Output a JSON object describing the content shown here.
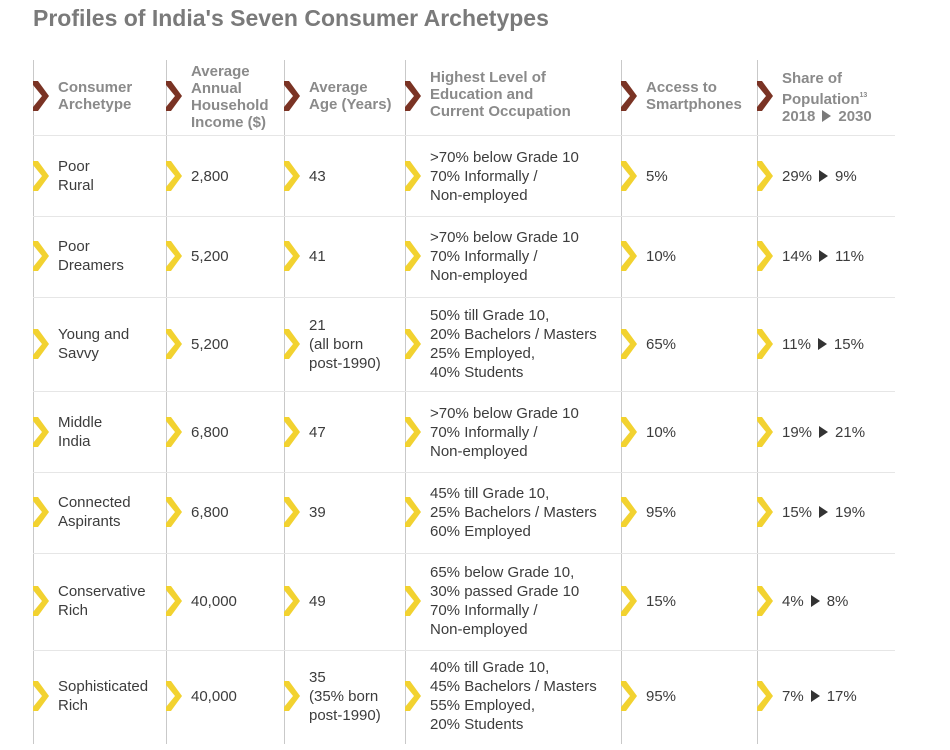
{
  "title": "Profiles of India's Seven Consumer Archetypes",
  "colors": {
    "header_marker": "#7a3324",
    "row_marker": "#f2d230",
    "divider": "#c9c9c9"
  },
  "headers": {
    "archetype": [
      "Consumer",
      "Archetype"
    ],
    "income": [
      "Average",
      "Annual",
      "Household",
      "Income ($)"
    ],
    "age": [
      "Average",
      "Age (Years)"
    ],
    "education": [
      "Highest Level of",
      "Education and",
      "Current Occupation"
    ],
    "smartphones": [
      "Access to",
      "Smartphones"
    ],
    "share": {
      "line1": "Share of",
      "line2": "Population",
      "footnote": "13",
      "from": "2018",
      "to": "2030"
    }
  },
  "rows": [
    {
      "archetype": [
        "Poor",
        "Rural"
      ],
      "income": "2,800",
      "age": [
        "43"
      ],
      "education": [
        ">70% below Grade 10",
        "70% Informally /",
        "Non-employed"
      ],
      "smartphones": "5%",
      "share_from": "29%",
      "share_to": "9%"
    },
    {
      "archetype": [
        "Poor",
        "Dreamers"
      ],
      "income": "5,200",
      "age": [
        "41"
      ],
      "education": [
        ">70% below Grade 10",
        "70% Informally /",
        "Non-employed"
      ],
      "smartphones": "10%",
      "share_from": "14%",
      "share_to": "11%"
    },
    {
      "archetype": [
        "Young and",
        "Savvy"
      ],
      "income": "5,200",
      "age": [
        "21",
        "(all born",
        "post-1990)"
      ],
      "education": [
        "50% till Grade 10,",
        "20% Bachelors / Masters",
        "25% Employed,",
        "40% Students"
      ],
      "smartphones": "65%",
      "share_from": "11%",
      "share_to": "15%"
    },
    {
      "archetype": [
        "Middle",
        "India"
      ],
      "income": "6,800",
      "age": [
        "47"
      ],
      "education": [
        ">70% below Grade 10",
        "70% Informally /",
        "Non-employed"
      ],
      "smartphones": "10%",
      "share_from": "19%",
      "share_to": "21%"
    },
    {
      "archetype": [
        "Connected",
        "Aspirants"
      ],
      "income": "6,800",
      "age": [
        "39"
      ],
      "education": [
        "45% till Grade 10,",
        "25% Bachelors / Masters",
        "60% Employed"
      ],
      "smartphones": "95%",
      "share_from": "15%",
      "share_to": "19%"
    },
    {
      "archetype": [
        "Conservative",
        "Rich"
      ],
      "income": "40,000",
      "age": [
        "49"
      ],
      "education": [
        "65% below Grade 10,",
        "30% passed Grade 10",
        "70% Informally /",
        "Non-employed"
      ],
      "smartphones": "15%",
      "share_from": "4%",
      "share_to": "8%"
    },
    {
      "archetype": [
        "Sophisticated",
        "Rich"
      ],
      "income": "40,000",
      "age": [
        "35",
        "(35% born",
        "post-1990)"
      ],
      "education": [
        "40% till Grade 10,",
        "45% Bachelors / Masters",
        "55% Employed,",
        "20% Students"
      ],
      "smartphones": "95%",
      "share_from": "7%",
      "share_to": "17%"
    }
  ]
}
